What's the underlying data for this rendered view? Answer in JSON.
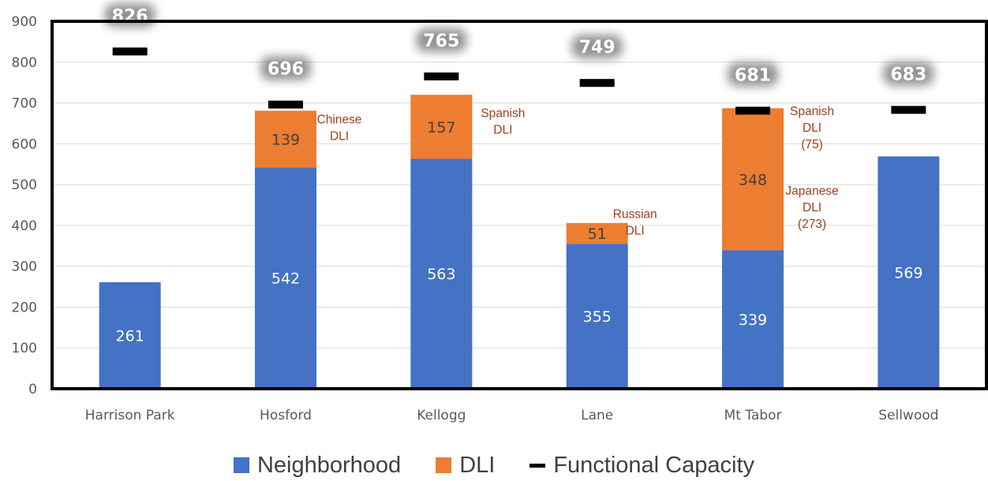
{
  "chart_data": {
    "type": "bar",
    "stacked": true,
    "categories": [
      "Harrison Park",
      "Hosford",
      "Kellogg",
      "Lane",
      "Mt Tabor",
      "Sellwood"
    ],
    "series": [
      {
        "name": "Neighborhood",
        "color": "#4472C4",
        "values": [
          261,
          542,
          563,
          355,
          339,
          569
        ]
      },
      {
        "name": "DLI",
        "color": "#ED7D31",
        "values": [
          0,
          139,
          157,
          51,
          348,
          0
        ]
      }
    ],
    "capacity": {
      "name": "Functional Capacity",
      "color": "#000000",
      "values": [
        826,
        696,
        765,
        749,
        681,
        683
      ]
    },
    "dli_annotations": [
      {
        "category": "Hosford",
        "lines": [
          "Chinese",
          "DLI"
        ]
      },
      {
        "category": "Kellogg",
        "lines": [
          "Spanish",
          "DLI"
        ]
      },
      {
        "category": "Lane",
        "lines": [
          "Russian",
          "DLI"
        ]
      },
      {
        "category": "Mt Tabor",
        "lines": [
          "Spanish",
          "DLI",
          "(75)"
        ]
      },
      {
        "category": "Mt Tabor",
        "lines": [
          "Japanese",
          "DLI",
          "(273)"
        ]
      }
    ],
    "ylim": [
      0,
      900
    ],
    "yticks": [
      0,
      100,
      200,
      300,
      400,
      500,
      600,
      700,
      800,
      900
    ],
    "grid": true,
    "legend_position": "bottom",
    "title": "",
    "xlabel": "",
    "ylabel": "",
    "annotation_color": "#A0401A"
  }
}
